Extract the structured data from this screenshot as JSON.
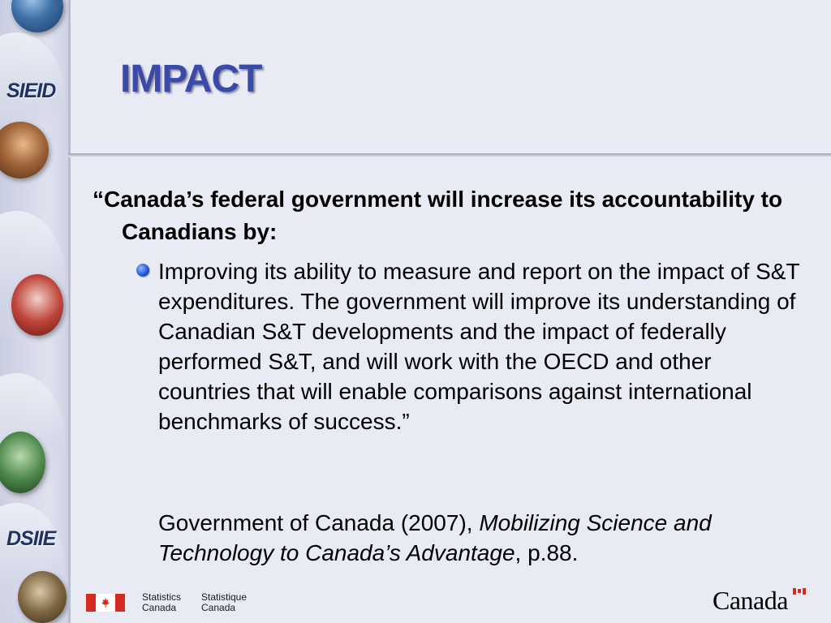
{
  "sidebar": {
    "label_top": "SIEID",
    "label_bottom": "DSIIE"
  },
  "slide": {
    "title": "IMPACT",
    "quote_heading": "“Canada’s federal government will increase its accountability to Canadians by:",
    "bullet": "Improving its ability to measure and report on the impact of S&T expenditures.  The government will improve its understanding of Canadian S&T developments and the impact of federally performed S&T, and will work with the OECD and other countries that will enable comparisons against international benchmarks of success.”",
    "citation": {
      "prefix": "Government of Canada (2007), ",
      "title": "Mobilizing Science and Technology to Canada’s Advantage",
      "suffix": ", p.88."
    }
  },
  "footer": {
    "statcan_en_line1": "Statistics",
    "statcan_en_line2": "Canada",
    "statcan_fr_line1": "Statistique",
    "statcan_fr_line2": "Canada",
    "wordmark": "Canada"
  },
  "colors": {
    "background": "#e8eaf4",
    "title": "#3a4aa8",
    "sidebar_label": "#1e3264",
    "flag_red": "#d52b1e"
  }
}
